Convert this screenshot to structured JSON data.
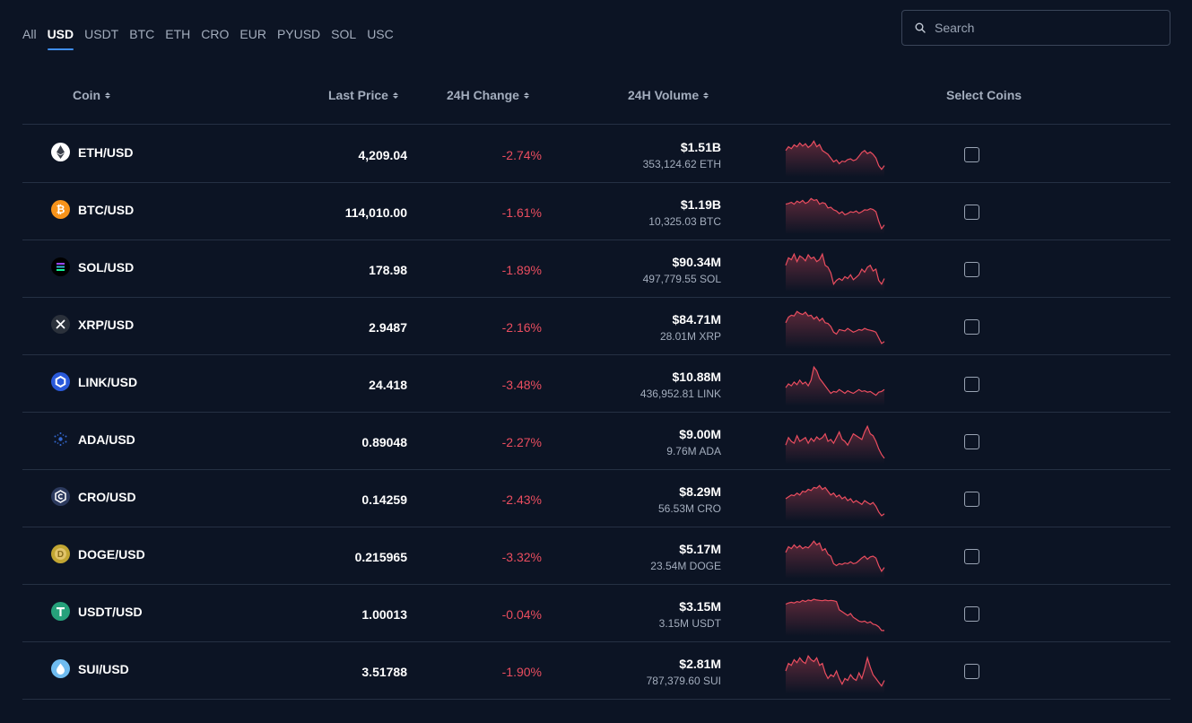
{
  "tabs": [
    "All",
    "USD",
    "USDT",
    "BTC",
    "ETH",
    "CRO",
    "EUR",
    "PYUSD",
    "SOL",
    "USC"
  ],
  "active_tab": "USD",
  "search": {
    "placeholder": "Search"
  },
  "columns": {
    "coin": "Coin",
    "last_price": "Last Price",
    "change": "24H Change",
    "volume": "24H Volume",
    "select": "Select Coins"
  },
  "colors": {
    "background": "#0c1424",
    "negative": "#ea4d5f",
    "accent": "#3f8ef0"
  },
  "rows": [
    {
      "pair": "ETH/USD",
      "icon": "eth-icon",
      "icon_color": "#ffffff",
      "price": "4,209.04",
      "change": "-2.74%",
      "volume": "$1.51B",
      "volume_base": "353,124.62 ETH",
      "spark": [
        0.6,
        0.7,
        0.65,
        0.75,
        0.7,
        0.8,
        0.72,
        0.78,
        0.68,
        0.74,
        0.85,
        0.7,
        0.76,
        0.6,
        0.55,
        0.5,
        0.4,
        0.3,
        0.35,
        0.25,
        0.32,
        0.3,
        0.36,
        0.38,
        0.33,
        0.36,
        0.45,
        0.55,
        0.6,
        0.52,
        0.56,
        0.5,
        0.4,
        0.2,
        0.1,
        0.2
      ]
    },
    {
      "pair": "BTC/USD",
      "icon": "btc-icon",
      "icon_color": "#f7931a",
      "price": "114,010.00",
      "change": "-1.61%",
      "volume": "$1.19B",
      "volume_base": "10,325.03 BTC",
      "spark": [
        0.7,
        0.72,
        0.75,
        0.7,
        0.78,
        0.74,
        0.8,
        0.72,
        0.76,
        0.85,
        0.8,
        0.82,
        0.7,
        0.74,
        0.72,
        0.6,
        0.62,
        0.55,
        0.52,
        0.45,
        0.5,
        0.42,
        0.45,
        0.5,
        0.48,
        0.52,
        0.46,
        0.5,
        0.55,
        0.54,
        0.58,
        0.56,
        0.5,
        0.25,
        0.05,
        0.15
      ]
    },
    {
      "pair": "SOL/USD",
      "icon": "sol-icon",
      "icon_color": "#14f195",
      "price": "178.98",
      "change": "-1.89%",
      "volume": "$90.34M",
      "volume_base": "497,779.55 SOL",
      "spark": [
        0.6,
        0.8,
        0.75,
        0.9,
        0.7,
        0.85,
        0.8,
        0.72,
        0.88,
        0.78,
        0.82,
        0.7,
        0.75,
        0.9,
        0.6,
        0.55,
        0.4,
        0.1,
        0.2,
        0.25,
        0.2,
        0.3,
        0.25,
        0.35,
        0.22,
        0.28,
        0.35,
        0.5,
        0.42,
        0.55,
        0.6,
        0.45,
        0.5,
        0.2,
        0.1,
        0.25
      ]
    },
    {
      "pair": "XRP/USD",
      "icon": "xrp-icon",
      "icon_color": "#23292f",
      "price": "2.9487",
      "change": "-2.16%",
      "volume": "$84.71M",
      "volume_base": "28.01M XRP",
      "spark": [
        0.6,
        0.75,
        0.8,
        0.78,
        0.9,
        0.85,
        0.82,
        0.88,
        0.78,
        0.8,
        0.7,
        0.76,
        0.65,
        0.72,
        0.6,
        0.58,
        0.5,
        0.35,
        0.3,
        0.42,
        0.4,
        0.38,
        0.45,
        0.4,
        0.35,
        0.38,
        0.42,
        0.4,
        0.45,
        0.42,
        0.4,
        0.38,
        0.35,
        0.2,
        0.05,
        0.1
      ]
    },
    {
      "pair": "LINK/USD",
      "icon": "link-icon",
      "icon_color": "#2a5ada",
      "price": "24.418",
      "change": "-3.48%",
      "volume": "$10.88M",
      "volume_base": "436,952.81 LINK",
      "spark": [
        0.4,
        0.5,
        0.45,
        0.55,
        0.48,
        0.6,
        0.5,
        0.55,
        0.45,
        0.6,
        0.95,
        0.85,
        0.65,
        0.55,
        0.45,
        0.35,
        0.25,
        0.3,
        0.28,
        0.35,
        0.3,
        0.25,
        0.32,
        0.28,
        0.25,
        0.3,
        0.35,
        0.3,
        0.32,
        0.28,
        0.3,
        0.25,
        0.2,
        0.28,
        0.3,
        0.35
      ]
    },
    {
      "pair": "ADA/USD",
      "icon": "ada-icon",
      "icon_color": "#0033ad",
      "price": "0.89048",
      "change": "-2.27%",
      "volume": "$9.00M",
      "volume_base": "9.76M ADA",
      "spark": [
        0.4,
        0.6,
        0.5,
        0.45,
        0.65,
        0.5,
        0.55,
        0.6,
        0.45,
        0.58,
        0.5,
        0.62,
        0.55,
        0.6,
        0.7,
        0.5,
        0.55,
        0.45,
        0.6,
        0.75,
        0.55,
        0.5,
        0.4,
        0.55,
        0.7,
        0.65,
        0.6,
        0.55,
        0.75,
        0.9,
        0.7,
        0.65,
        0.5,
        0.3,
        0.15,
        0.05
      ]
    },
    {
      "pair": "CRO/USD",
      "icon": "cro-icon",
      "icon_color": "#1d2b4f",
      "price": "0.14259",
      "change": "-2.43%",
      "volume": "$8.29M",
      "volume_base": "56.53M CRO",
      "spark": [
        0.5,
        0.55,
        0.6,
        0.58,
        0.65,
        0.6,
        0.7,
        0.68,
        0.75,
        0.72,
        0.8,
        0.78,
        0.85,
        0.75,
        0.8,
        0.7,
        0.6,
        0.65,
        0.55,
        0.6,
        0.5,
        0.55,
        0.45,
        0.5,
        0.4,
        0.45,
        0.4,
        0.35,
        0.45,
        0.4,
        0.35,
        0.4,
        0.3,
        0.15,
        0.05,
        0.1
      ]
    },
    {
      "pair": "DOGE/USD",
      "icon": "doge-icon",
      "icon_color": "#c2a633",
      "price": "0.215965",
      "change": "-3.32%",
      "volume": "$5.17M",
      "volume_base": "23.54M DOGE",
      "spark": [
        0.6,
        0.75,
        0.7,
        0.8,
        0.72,
        0.78,
        0.7,
        0.75,
        0.72,
        0.8,
        0.9,
        0.8,
        0.85,
        0.65,
        0.7,
        0.55,
        0.5,
        0.3,
        0.25,
        0.3,
        0.28,
        0.32,
        0.3,
        0.35,
        0.3,
        0.32,
        0.38,
        0.45,
        0.5,
        0.42,
        0.48,
        0.5,
        0.45,
        0.25,
        0.1,
        0.2
      ]
    },
    {
      "pair": "USDT/USD",
      "icon": "usdt-icon",
      "icon_color": "#26a17b",
      "price": "1.00013",
      "change": "-0.04%",
      "volume": "$3.15M",
      "volume_base": "3.15M USDT",
      "spark": [
        0.75,
        0.78,
        0.8,
        0.78,
        0.82,
        0.8,
        0.85,
        0.82,
        0.86,
        0.84,
        0.88,
        0.86,
        0.85,
        0.84,
        0.86,
        0.84,
        0.85,
        0.84,
        0.82,
        0.6,
        0.55,
        0.5,
        0.45,
        0.5,
        0.4,
        0.35,
        0.3,
        0.28,
        0.3,
        0.25,
        0.28,
        0.22,
        0.2,
        0.15,
        0.05,
        0.05
      ]
    },
    {
      "pair": "SUI/USD",
      "icon": "sui-icon",
      "icon_color": "#6fbcf0",
      "price": "3.51788",
      "change": "-1.90%",
      "volume": "$2.81M",
      "volume_base": "787,379.60 SUI",
      "spark": [
        0.5,
        0.7,
        0.65,
        0.8,
        0.72,
        0.85,
        0.75,
        0.7,
        0.9,
        0.8,
        0.75,
        0.85,
        0.65,
        0.7,
        0.45,
        0.3,
        0.4,
        0.35,
        0.5,
        0.3,
        0.15,
        0.3,
        0.25,
        0.4,
        0.3,
        0.25,
        0.45,
        0.3,
        0.55,
        0.85,
        0.6,
        0.4,
        0.3,
        0.2,
        0.1,
        0.25
      ]
    }
  ]
}
